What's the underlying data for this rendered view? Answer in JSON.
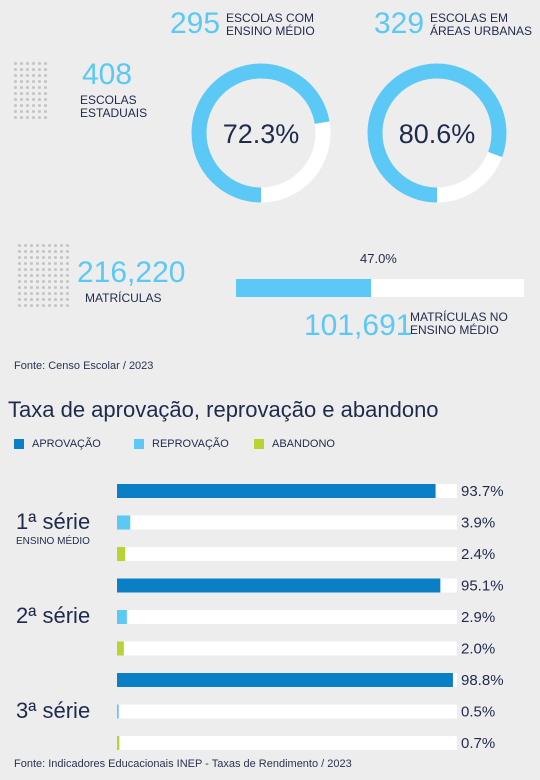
{
  "summary": {
    "schools_state": {
      "value": "408",
      "label_l1": "ESCOLAS",
      "label_l2": "ESTADUAIS"
    },
    "schools_hs": {
      "value": "295",
      "label_l1": "ESCOLAS COM",
      "label_l2": "ENSINO MÉDIO",
      "pct": 72.3,
      "pct_label": "72.3%"
    },
    "schools_urban": {
      "value": "329",
      "label_l1": "ESCOLAS EM",
      "label_l2": "ÁREAS URBANAS",
      "pct": 80.6,
      "pct_label": "80.6%"
    },
    "enrollments": {
      "value": "216,220",
      "label": "MATRÍCULAS"
    },
    "enrollments_hs": {
      "value": "101,691",
      "label_l1": "MATRÍCULAS NO",
      "label_l2": "ENSINO MÉDIO",
      "pct": 47.0,
      "pct_label": "47.0%"
    },
    "source": "Fonte: Censo Escolar / 2023"
  },
  "colors": {
    "aprovacao": "#0b7fc6",
    "reprovacao": "#5bc8f5",
    "abandono": "#b8d432",
    "track": "#ffffff"
  },
  "chart_data": {
    "type": "bar",
    "title": "Taxa de aprovação, reprovação e abandono",
    "series": [
      {
        "name": "APROVAÇÃO",
        "values": [
          93.7,
          95.1,
          98.8
        ]
      },
      {
        "name": "REPROVAÇÃO",
        "values": [
          3.9,
          2.9,
          0.5
        ]
      },
      {
        "name": "ABANDONO",
        "values": [
          2.4,
          2.0,
          0.7
        ]
      }
    ],
    "categories": [
      "1ª série",
      "2ª série",
      "3ª série"
    ],
    "category_sublabel": "ENSINO MÉDIO",
    "value_labels": [
      [
        "93.7%",
        "3.9%",
        "2.4%"
      ],
      [
        "95.1%",
        "2.9%",
        "2.0%"
      ],
      [
        "98.8%",
        "0.5%",
        "0.7%"
      ]
    ],
    "xlim": [
      0,
      100
    ],
    "legend_position": "top-left",
    "source": "Fonte: Indicadores Educacionais INEP - Taxas de Rendimento / 2023"
  }
}
